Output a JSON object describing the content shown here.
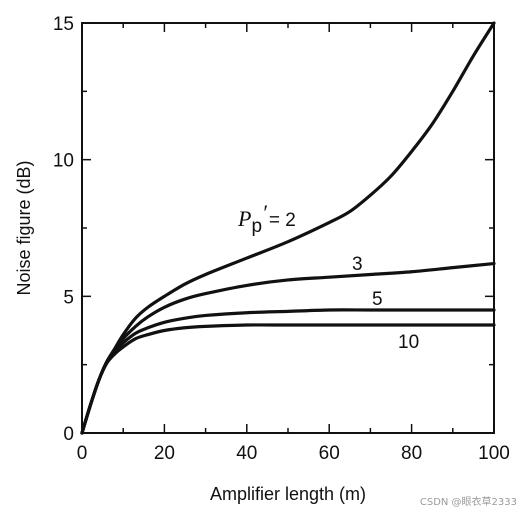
{
  "chart_data": {
    "type": "line",
    "xlabel": "Amplifier length (m)",
    "ylabel": "Noise figure (dB)",
    "xlim": [
      0,
      100
    ],
    "ylim": [
      0,
      15
    ],
    "xticks": [
      0,
      20,
      40,
      60,
      80,
      100
    ],
    "yticks": [
      0,
      5,
      10,
      15
    ],
    "grid": false,
    "legend": "none",
    "curve_label_prefix": "P",
    "curve_label_subscript": "p",
    "curve_label_prime": "′",
    "curve_label_equals": "= 2",
    "series": [
      {
        "name": "2",
        "x": [
          0,
          2,
          4,
          6,
          8,
          10,
          13,
          16,
          20,
          25,
          30,
          40,
          50,
          60,
          65,
          70,
          75,
          80,
          85,
          90,
          95,
          100
        ],
        "y": [
          0,
          1.0,
          1.9,
          2.6,
          3.1,
          3.6,
          4.2,
          4.6,
          5.0,
          5.45,
          5.8,
          6.4,
          7.0,
          7.7,
          8.1,
          8.7,
          9.4,
          10.3,
          11.3,
          12.5,
          13.8,
          15.0
        ]
      },
      {
        "name": "3",
        "x": [
          0,
          2,
          4,
          6,
          8,
          10,
          13,
          16,
          20,
          25,
          30,
          40,
          50,
          60,
          70,
          80,
          90,
          100
        ],
        "y": [
          0,
          1.0,
          1.9,
          2.6,
          3.05,
          3.45,
          3.9,
          4.25,
          4.6,
          4.9,
          5.1,
          5.4,
          5.6,
          5.7,
          5.8,
          5.9,
          6.05,
          6.2
        ]
      },
      {
        "name": "5",
        "x": [
          0,
          2,
          4,
          6,
          8,
          10,
          13,
          16,
          20,
          25,
          30,
          40,
          50,
          60,
          70,
          80,
          90,
          100
        ],
        "y": [
          0,
          1.0,
          1.9,
          2.6,
          3.0,
          3.3,
          3.65,
          3.85,
          4.05,
          4.2,
          4.3,
          4.4,
          4.45,
          4.5,
          4.5,
          4.5,
          4.5,
          4.5
        ]
      },
      {
        "name": "10",
        "x": [
          0,
          2,
          4,
          6,
          8,
          10,
          13,
          16,
          20,
          25,
          30,
          40,
          50,
          60,
          70,
          80,
          90,
          100
        ],
        "y": [
          0,
          1.0,
          1.9,
          2.55,
          2.9,
          3.15,
          3.45,
          3.6,
          3.75,
          3.85,
          3.9,
          3.95,
          3.95,
          3.95,
          3.95,
          3.95,
          3.95,
          3.95
        ]
      }
    ]
  },
  "watermark": "CSDN @眼衣草2333"
}
